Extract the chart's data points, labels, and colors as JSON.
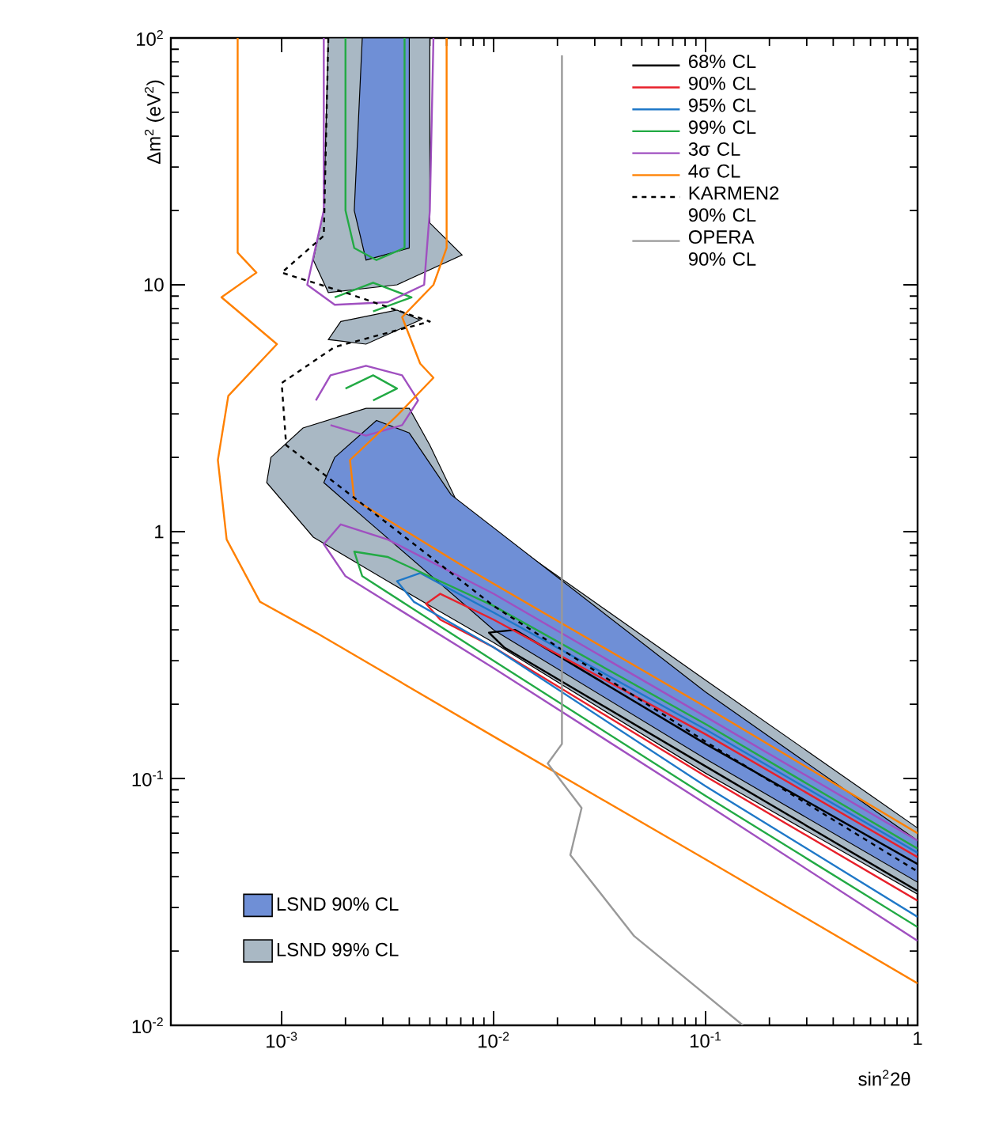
{
  "chart_data": {
    "type": "line",
    "xlabel": "sin$^{2}$2θ",
    "ylabel": "Δm$^{2}$ (eV$^{2}$)",
    "log": "xy",
    "xlim": [
      0.0003,
      1
    ],
    "ylim": [
      0.01,
      100
    ],
    "xticks": [
      {
        "value": 0.001,
        "label": "10$^{-3}$"
      },
      {
        "value": 0.01,
        "label": "10$^{-2}$"
      },
      {
        "value": 0.1,
        "label": "10$^{-1}$"
      },
      {
        "value": 1,
        "label": "1"
      }
    ],
    "yticks": [
      {
        "value": 0.01,
        "label": "10$^{-2}$"
      },
      {
        "value": 0.1,
        "label": "10$^{-1}$"
      },
      {
        "value": 1,
        "label": "1"
      },
      {
        "value": 10,
        "label": "10"
      },
      {
        "value": 100,
        "label": "10$^{2}$"
      }
    ],
    "legend": "top right",
    "series": [
      {
        "name": "LSND 99% CL",
        "type": "area",
        "color": "#a9b8c4",
        "x": [
          0.00089,
          0.00126,
          0.0025,
          0.004,
          0.005,
          0.0069,
          0.1,
          1,
          1,
          0.1,
          0.01,
          0.00316,
          0.00141,
          0.00085
        ],
        "values": [
          2.0,
          2.63,
          3.16,
          3.16,
          2.24,
          1.26,
          0.25,
          0.063,
          0.034,
          0.105,
          0.355,
          0.63,
          0.95,
          1.58
        ]
      },
      {
        "type": "area",
        "color": "#a9b8c4",
        "x": [
          0.00166,
          0.005,
          0.005,
          0.0071,
          0.0035,
          0.00166,
          0.00141,
          0.00158
        ],
        "values": [
          100,
          100,
          17.8,
          13.2,
          10,
          9.3,
          12.6,
          20
        ]
      },
      {
        "type": "area",
        "color": "#a9b8c4",
        "x": [
          0.0019,
          0.0035,
          0.0045,
          0.0025,
          0.00166
        ],
        "values": [
          7.1,
          7.9,
          7.2,
          5.75,
          6.0
        ]
      },
      {
        "name": "LSND 90% CL",
        "type": "area",
        "color": "#6f8fd6",
        "x": [
          0.00178,
          0.0028,
          0.004,
          0.0063,
          0.1,
          1,
          1,
          0.1,
          0.01,
          0.0025,
          0.00158
        ],
        "values": [
          2.0,
          2.82,
          2.51,
          1.41,
          0.224,
          0.056,
          0.038,
          0.12,
          0.4,
          1.12,
          1.58
        ]
      },
      {
        "type": "area",
        "color": "#6f8fd6",
        "x": [
          0.0024,
          0.004,
          0.004,
          0.0025,
          0.0022
        ],
        "values": [
          100,
          100,
          14.1,
          12.6,
          20
        ]
      },
      {
        "name": "68% CL",
        "color": "#000000",
        "x": [
          1,
          0.1,
          0.0126,
          0.0095,
          0.0112,
          0.1,
          1
        ],
        "values": [
          0.045,
          0.138,
          0.4,
          0.39,
          0.34,
          0.112,
          0.035
        ]
      },
      {
        "name": "90% CL",
        "color": "#e8202a",
        "x": [
          1,
          0.1,
          0.01,
          0.0056,
          0.0048,
          0.0056,
          0.01,
          0.1,
          1
        ],
        "values": [
          0.048,
          0.151,
          0.44,
          0.56,
          0.51,
          0.44,
          0.34,
          0.102,
          0.032
        ]
      },
      {
        "name": "95% CL",
        "color": "#1f78c8",
        "x": [
          1,
          0.1,
          0.01,
          0.0045,
          0.0035,
          0.0042,
          0.01,
          0.1,
          1
        ],
        "values": [
          0.05,
          0.158,
          0.47,
          0.68,
          0.63,
          0.52,
          0.34,
          0.093,
          0.0275
        ]
      },
      {
        "name": "99% CL",
        "color": "#22aa44",
        "x": [
          1,
          0.1,
          0.01,
          0.00316,
          0.0022,
          0.0024,
          0.01,
          0.1,
          1
        ],
        "values": [
          0.052,
          0.166,
          0.5,
          0.79,
          0.83,
          0.66,
          0.3,
          0.085,
          0.025
        ]
      },
      {
        "color": "#22aa44",
        "x": [
          0.002,
          0.002,
          0.0022,
          0.0028,
          0.0038,
          0.0038
        ],
        "values": [
          100,
          20,
          14.1,
          12.6,
          14.1,
          100
        ]
      },
      {
        "color": "#22aa44",
        "x": [
          0.00178,
          0.0027,
          0.0041,
          0.0027
        ],
        "values": [
          8.9,
          10.2,
          8.9,
          7.8
        ]
      },
      {
        "color": "#22aa44",
        "x": [
          0.002,
          0.0027,
          0.0035,
          0.0027
        ],
        "values": [
          3.8,
          4.3,
          3.8,
          3.4
        ]
      },
      {
        "name": "3σ CL",
        "color": "#a050c0",
        "x": [
          1,
          0.1,
          0.01,
          0.00316,
          0.0019,
          0.00158,
          0.002,
          0.01,
          0.1,
          1
        ],
        "values": [
          0.056,
          0.178,
          0.56,
          0.93,
          1.07,
          0.89,
          0.66,
          0.28,
          0.079,
          0.022
        ]
      },
      {
        "color": "#a050c0",
        "x": [
          0.00158,
          0.00158,
          0.00132,
          0.00178,
          0.00316,
          0.0047,
          0.005,
          0.0052
        ],
        "values": [
          100,
          20,
          10,
          8.3,
          8.5,
          10,
          20,
          100
        ]
      },
      {
        "color": "#a050c0",
        "x": [
          0.00145,
          0.0017,
          0.0025,
          0.0037,
          0.0044,
          0.0037,
          0.0025,
          0.0017
        ],
        "values": [
          3.4,
          4.3,
          4.7,
          4.3,
          3.4,
          2.7,
          2.45,
          2.7
        ]
      },
      {
        "name": "4σ CL",
        "color": "#ff8000",
        "x": [
          0.00062,
          0.00062,
          0.00076,
          0.00052,
          0.00095,
          0.00056,
          0.0005,
          0.00055,
          0.00079,
          0.00145,
          0.01,
          0.1,
          1
        ],
        "values": [
          100,
          13.5,
          11.2,
          8.9,
          5.75,
          3.55,
          1.95,
          0.93,
          0.52,
          0.39,
          0.148,
          0.047,
          0.0148
        ]
      },
      {
        "color": "#ff8000",
        "x": [
          0.006,
          0.006,
          0.0052,
          0.0037,
          0.0045,
          0.0052,
          0.0035,
          0.0021,
          0.0022,
          0.0069,
          0.1,
          1
        ],
        "values": [
          100,
          14.1,
          10,
          7.4,
          4.8,
          4.2,
          2.95,
          1.95,
          1.35,
          0.74,
          0.195,
          0.06
        ]
      },
      {
        "name": "KARMEN2 90% CL",
        "color": "#000000",
        "line_style": "dashed",
        "x": [
          0.00166,
          0.00158,
          0.001,
          0.002,
          0.005,
          0.00178,
          0.001,
          0.00105,
          0.0025,
          0.01,
          0.1,
          1
        ],
        "values": [
          100,
          15.8,
          11.2,
          9.3,
          7.1,
          5.6,
          4.0,
          2.24,
          1.26,
          0.5,
          0.141,
          0.042
        ]
      },
      {
        "name": "OPERA 90% CL",
        "color": "#999999",
        "x": [
          0.021,
          0.021,
          0.018,
          0.026,
          0.023,
          0.046,
          0.15
        ],
        "values": [
          85,
          0.138,
          0.115,
          0.076,
          0.049,
          0.023,
          0.01
        ]
      }
    ]
  }
}
